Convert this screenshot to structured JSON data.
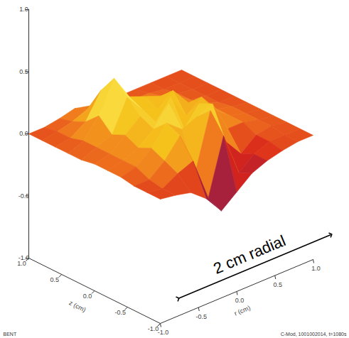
{
  "chart_data": {
    "type": "surface",
    "x_label": "r (cm)",
    "y_label": "z (cm)",
    "xlim": [
      -1,
      1
    ],
    "ylim": [
      -1,
      1
    ],
    "zlim": [
      -1,
      1
    ],
    "xticks": [
      {
        "value": -1,
        "label": "-1.0"
      },
      {
        "value": -0.5,
        "label": "-0.5"
      },
      {
        "value": 0,
        "label": "0.0"
      },
      {
        "value": 0.5,
        "label": "0.5"
      },
      {
        "value": 1,
        "label": "1.0"
      }
    ],
    "yticks": [
      {
        "value": -1,
        "label": "-1.0"
      },
      {
        "value": -0.5,
        "label": "-0.5"
      },
      {
        "value": 0,
        "label": "0.0"
      },
      {
        "value": 0.5,
        "label": "0.5"
      },
      {
        "value": 1,
        "label": "1.0"
      }
    ],
    "zticks": [
      {
        "value": -1,
        "label": "-1.0"
      },
      {
        "value": -0.5,
        "label": "-0.5"
      },
      {
        "value": 0,
        "label": "0.0"
      },
      {
        "value": 0.5,
        "label": "0.5"
      },
      {
        "value": 1,
        "label": "1.0"
      }
    ],
    "x": [
      -1,
      -0.8,
      -0.6,
      -0.4,
      -0.2,
      0,
      0.2,
      0.4,
      0.6,
      0.8,
      1
    ],
    "y": [
      -1,
      -0.8,
      -0.6,
      -0.4,
      -0.2,
      0,
      0.2,
      0.4,
      0.6,
      0.8,
      1
    ],
    "z": [
      [
        0.0,
        -0.02,
        -0.05,
        -0.15,
        -0.3,
        -0.2,
        -0.1,
        -0.05,
        -0.02,
        0.0,
        0.0
      ],
      [
        0.0,
        -0.02,
        0.05,
        0.1,
        -0.25,
        0.2,
        -0.15,
        -0.05,
        0.0,
        0.0,
        0.0
      ],
      [
        0.0,
        0.0,
        0.1,
        0.25,
        -0.1,
        0.35,
        0.05,
        -0.1,
        0.0,
        0.02,
        0.0
      ],
      [
        0.02,
        0.05,
        0.15,
        0.3,
        0.2,
        0.25,
        0.3,
        0.05,
        0.05,
        0.02,
        0.0
      ],
      [
        0.02,
        0.05,
        0.1,
        0.2,
        0.35,
        0.1,
        0.25,
        0.15,
        0.05,
        0.02,
        0.0
      ],
      [
        0.02,
        0.05,
        0.15,
        0.25,
        0.15,
        0.3,
        0.1,
        0.2,
        0.05,
        0.02,
        0.0
      ],
      [
        0.0,
        0.05,
        0.1,
        0.35,
        0.2,
        0.15,
        0.25,
        0.1,
        0.05,
        0.0,
        0.0
      ],
      [
        0.0,
        0.05,
        0.2,
        0.45,
        0.25,
        0.2,
        0.15,
        0.1,
        0.02,
        0.0,
        0.0
      ],
      [
        0.0,
        0.02,
        0.1,
        0.3,
        0.15,
        0.1,
        0.1,
        0.05,
        0.02,
        0.0,
        0.0
      ],
      [
        0.0,
        0.02,
        0.05,
        0.1,
        0.05,
        0.05,
        0.02,
        0.02,
        0.0,
        0.0,
        0.0
      ],
      [
        0.0,
        0.0,
        0.02,
        0.05,
        0.02,
        0.02,
        0.0,
        0.0,
        0.0,
        0.0,
        0.0
      ]
    ],
    "annotation": "2 cm radial",
    "footer_left": "BENT",
    "footer_right": "C-Mod, 1001002014, t=1080s"
  }
}
